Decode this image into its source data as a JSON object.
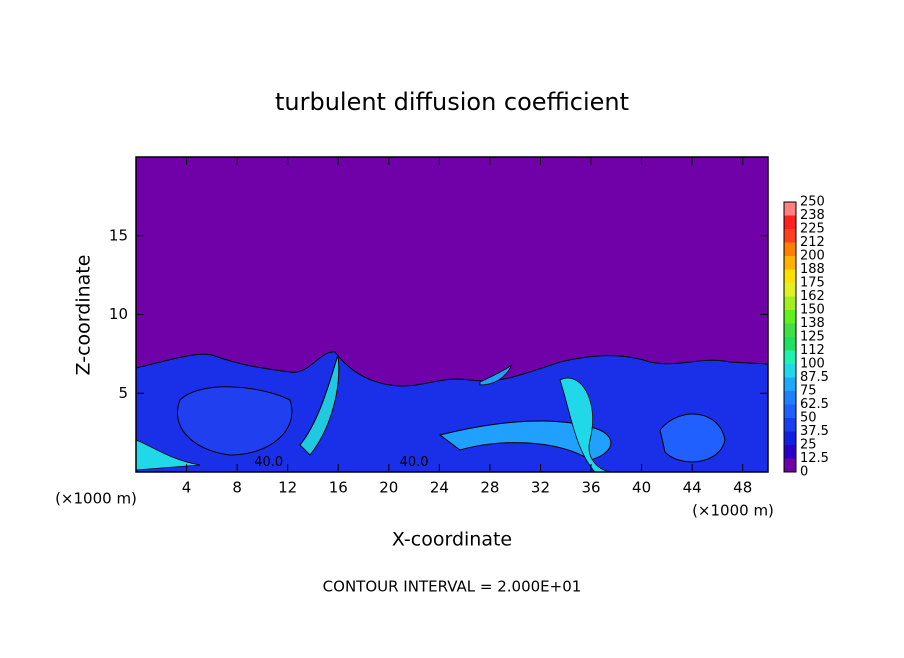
{
  "chart_data": {
    "type": "contour",
    "title": "turbulent diffusion coefficient",
    "x_label": "X-coordinate",
    "y_label": "Z-coordinate",
    "x_unit": "(×1000 m)",
    "y_unit": "(×1000 m)",
    "footer": "CONTOUR INTERVAL = 2.000E+01",
    "xlim": [
      0,
      50
    ],
    "xticks": [
      4,
      8,
      12,
      16,
      20,
      24,
      28,
      32,
      36,
      40,
      44,
      48
    ],
    "ylim": [
      0,
      20
    ],
    "yticks": [
      5,
      10,
      15
    ],
    "contour_labels": [
      {
        "value": 40,
        "label": "40.0",
        "x": 10.5,
        "y": 0.6
      },
      {
        "value": 40,
        "label": "40.0",
        "x": 22,
        "y": 0.6
      }
    ],
    "colorbar": {
      "levels": [
        0,
        12.5,
        25,
        37.5,
        50,
        62.5,
        75,
        87.5,
        100,
        112,
        125,
        138,
        150,
        162,
        175,
        188,
        200,
        212,
        225,
        238,
        250
      ],
      "colors": [
        "#7000a8",
        "#2a00c8",
        "#1020e0",
        "#1840f0",
        "#2060ff",
        "#2080ff",
        "#20a8ff",
        "#20d8e8",
        "#20f0b0",
        "#20e060",
        "#40e040",
        "#60f020",
        "#a0f020",
        "#e0f020",
        "#ffe000",
        "#ffb000",
        "#ff8000",
        "#ff4020",
        "#ff2020",
        "#ff8080"
      ]
    }
  }
}
